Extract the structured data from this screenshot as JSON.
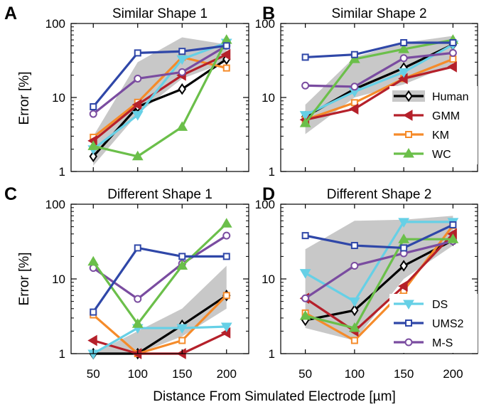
{
  "figure": {
    "xlabel": "Distance From Simulated Electrode [µm]",
    "ylabel": "Error [%]"
  },
  "colors": {
    "Human": "#000000",
    "GMM": "#b5202a",
    "KM": "#f58b2a",
    "WC": "#6bbf4a",
    "DS": "#66d0e6",
    "UMS2": "#2f47a8",
    "M-S": "#7a4ca0",
    "band": "#c8c8c8"
  },
  "legends": [
    {
      "panel": 1,
      "entries": [
        "Human",
        "GMM",
        "KM",
        "WC"
      ]
    },
    {
      "panel": 3,
      "entries": [
        "DS",
        "UMS2",
        "M-S"
      ]
    }
  ],
  "chart_data": [
    {
      "letter": "A",
      "type": "line",
      "title": "Similar Shape 1",
      "x": [
        50,
        100,
        150,
        200
      ],
      "xticks": [
        "50",
        "100",
        "150",
        "200"
      ],
      "yscale": "log",
      "ylim": [
        1,
        100
      ],
      "yticks": [
        "1",
        "10",
        "100"
      ],
      "band": {
        "lower": [
          1.2,
          6,
          18,
          30
        ],
        "upper": [
          3,
          30,
          65,
          52
        ]
      },
      "series": [
        {
          "name": "Human",
          "values": [
            1.6,
            7.5,
            13,
            33
          ],
          "marker": "diamond"
        },
        {
          "name": "GMM",
          "values": [
            2.6,
            8.0,
            20,
            38
          ],
          "marker": "tri-left"
        },
        {
          "name": "KM",
          "values": [
            2.9,
            8.6,
            35,
            25
          ],
          "marker": "square"
        },
        {
          "name": "WC",
          "values": [
            2.2,
            1.6,
            4.0,
            60
          ],
          "marker": "tri-up"
        },
        {
          "name": "DS",
          "values": [
            2.0,
            5.8,
            33,
            55
          ],
          "marker": "tri-down"
        },
        {
          "name": "UMS2",
          "values": [
            7.5,
            40,
            42,
            50
          ],
          "marker": "square"
        },
        {
          "name": "M-S",
          "values": [
            6.0,
            18,
            22,
            50
          ],
          "marker": "circle"
        }
      ]
    },
    {
      "letter": "B",
      "type": "line",
      "title": "Similar Shape 2",
      "x": [
        50,
        100,
        150,
        200
      ],
      "xticks": [
        "50",
        "100",
        "150",
        "200"
      ],
      "yscale": "log",
      "ylim": [
        1,
        100
      ],
      "yticks": [
        "1",
        "10",
        "100"
      ],
      "band": {
        "lower": [
          3.2,
          10,
          15,
          28
        ],
        "upper": [
          8,
          35,
          55,
          68
        ]
      },
      "series": [
        {
          "name": "Human",
          "values": [
            5.5,
            13,
            25,
            52
          ],
          "marker": "diamond"
        },
        {
          "name": "GMM",
          "values": [
            5.0,
            7.0,
            18,
            26
          ],
          "marker": "tri-left"
        },
        {
          "name": "KM",
          "values": [
            5.0,
            8.5,
            18,
            33
          ],
          "marker": "square"
        },
        {
          "name": "WC",
          "values": [
            4.5,
            33,
            45,
            60
          ],
          "marker": "tri-up"
        },
        {
          "name": "DS",
          "values": [
            5.8,
            12,
            22,
            52
          ],
          "marker": "tri-down"
        },
        {
          "name": "UMS2",
          "values": [
            35,
            38,
            55,
            55
          ],
          "marker": "square"
        },
        {
          "name": "M-S",
          "values": [
            14.5,
            14,
            34,
            40
          ],
          "marker": "circle"
        }
      ]
    },
    {
      "letter": "C",
      "type": "line",
      "title": "Different Shape 1",
      "x": [
        50,
        100,
        150,
        200
      ],
      "xticks": [
        "50",
        "100",
        "150",
        "200"
      ],
      "yscale": "log",
      "ylim": [
        1,
        100
      ],
      "yticks": [
        "1",
        "10",
        "100"
      ],
      "band": {
        "lower": [
          1,
          1,
          1.7,
          4
        ],
        "upper": [
          1,
          2,
          4,
          15
        ]
      },
      "series": [
        {
          "name": "Human",
          "values": [
            1.0,
            1.0,
            2.4,
            6.0
          ],
          "marker": "diamond"
        },
        {
          "name": "GMM",
          "values": [
            1.5,
            1.0,
            1.0,
            1.9
          ],
          "marker": "tri-left"
        },
        {
          "name": "KM",
          "values": [
            3.3,
            1.0,
            1.5,
            6.0
          ],
          "marker": "square"
        },
        {
          "name": "WC",
          "values": [
            17,
            2.5,
            15,
            55
          ],
          "marker": "tri-up"
        },
        {
          "name": "DS",
          "values": [
            1.0,
            2.2,
            2.2,
            2.3
          ],
          "marker": "tri-down"
        },
        {
          "name": "UMS2",
          "values": [
            3.6,
            26,
            20,
            20
          ],
          "marker": "square"
        },
        {
          "name": "M-S",
          "values": [
            14,
            5.4,
            16,
            38
          ],
          "marker": "circle"
        }
      ]
    },
    {
      "letter": "D",
      "type": "line",
      "title": "Different Shape 2",
      "x": [
        50,
        100,
        150,
        200
      ],
      "xticks": [
        "50",
        "100",
        "150",
        "200"
      ],
      "yscale": "log",
      "ylim": [
        1,
        100
      ],
      "yticks": [
        "1",
        "10",
        "100"
      ],
      "band": {
        "lower": [
          2.2,
          1.5,
          10,
          28
        ],
        "upper": [
          25,
          60,
          62,
          70
        ]
      },
      "series": [
        {
          "name": "Human",
          "values": [
            2.8,
            3.8,
            15,
            33
          ],
          "marker": "diamond"
        },
        {
          "name": "GMM",
          "values": [
            5.5,
            2.0,
            8.0,
            40
          ],
          "marker": "tri-left"
        },
        {
          "name": "KM",
          "values": [
            3.5,
            1.5,
            7.0,
            52
          ],
          "marker": "square"
        },
        {
          "name": "WC",
          "values": [
            3.2,
            2.2,
            34,
            34
          ],
          "marker": "tri-up"
        },
        {
          "name": "DS",
          "values": [
            12,
            5.0,
            58,
            58
          ],
          "marker": "tri-down"
        },
        {
          "name": "UMS2",
          "values": [
            38,
            28,
            26,
            53
          ],
          "marker": "square"
        },
        {
          "name": "M-S",
          "values": [
            5.5,
            15,
            22,
            32
          ],
          "marker": "circle"
        }
      ]
    }
  ]
}
